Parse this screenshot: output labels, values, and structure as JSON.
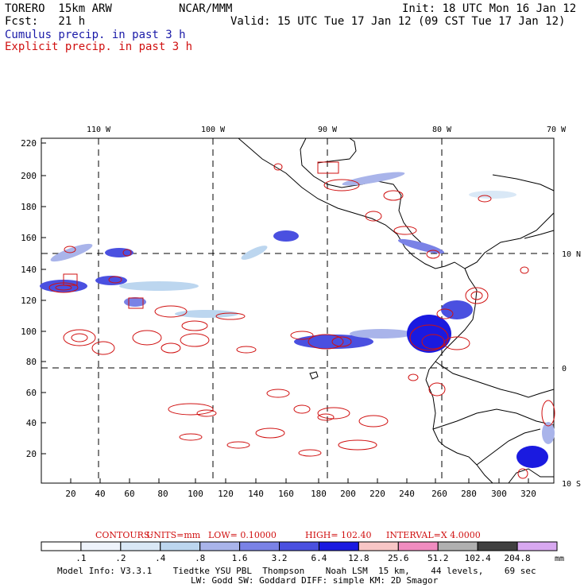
{
  "header": {
    "model": "TORERO  15km ARW",
    "org": "NCAR/MMM",
    "init": "Init: 18 UTC Mon 16 Jan 12",
    "fcst": "Fcst:   21 h",
    "valid": "Valid: 15 UTC Tue 17 Jan 12 (09 CST Tue 17 Jan 12)",
    "cumulus_label": "Cumulus precip. in past 3 h",
    "explicit_label": "Explicit precip. in past 3 h"
  },
  "colors": {
    "cumulus": "#1a1aa8",
    "explicit": "#d01010",
    "contour": "#d01010",
    "frame": "#000000"
  },
  "map": {
    "lon_labels": [
      "110 W",
      "100 W",
      "90 W",
      "80 W",
      "70 W"
    ],
    "lat_labels": [
      "10 N",
      "0",
      "10 S"
    ],
    "y_ticks": [
      "220",
      "200",
      "180",
      "160",
      "140",
      "120",
      "100",
      "80",
      "60",
      "40",
      "20"
    ],
    "x_ticks": [
      "20",
      "40",
      "60",
      "80",
      "100",
      "120",
      "140",
      "160",
      "180",
      "200",
      "220",
      "240",
      "260",
      "280",
      "300",
      "320"
    ]
  },
  "contours_line": {
    "title": "CONTOURS:",
    "units": "UNITS=mm",
    "low": "LOW= 0.10000",
    "high": "HIGH=  102.40",
    "interval": "INTERVAL=X  4.0000"
  },
  "colorbar": {
    "labels": [
      ".1",
      ".2",
      ".4",
      ".8",
      "1.6",
      "3.2",
      "6.4",
      "12.8",
      "25.6",
      "51.2",
      "102.4",
      "204.8"
    ],
    "unit": "mm",
    "colors": [
      "#ffffff",
      "#eef3fb",
      "#d9e8f6",
      "#bcd6ef",
      "#a9b4ea",
      "#7a82e6",
      "#4a50e0",
      "#1a1ae0",
      "#f8c6c6",
      "#f08cc0",
      "#b0b0b0",
      "#404040",
      "#d8a8f0"
    ]
  },
  "footer": {
    "line1": "Model Info: V3.3.1    Tiedtke YSU PBL  Thompson    Noah LSM  15 km,    44 levels,    69 sec",
    "line2": "LW: Godd SW: Goddard DIFF: simple KM: 2D Smagor"
  }
}
